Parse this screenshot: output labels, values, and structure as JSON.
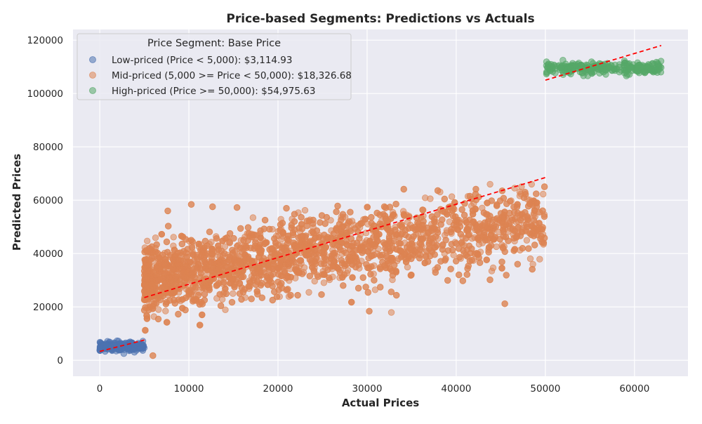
{
  "chart_data": {
    "type": "scatter",
    "title": "Price-based Segments: Predictions vs Actuals",
    "xlabel": "Actual Prices",
    "ylabel": "Predicted Prices",
    "xlim": [
      -3000,
      66000
    ],
    "ylim": [
      -6000,
      124000
    ],
    "x_ticks": [
      0,
      10000,
      20000,
      30000,
      40000,
      50000,
      60000
    ],
    "y_ticks": [
      0,
      20000,
      40000,
      60000,
      80000,
      100000,
      120000
    ],
    "grid": true,
    "legend": {
      "title": "Price Segment: Base Price",
      "placement": "top-left"
    },
    "series": [
      {
        "name": "Low-priced (Price < 5,000): $3,114.93",
        "color": "#4c72b0",
        "point_cloud": {
          "x_range": [
            0,
            5000
          ],
          "y_range": [
            2500,
            7800
          ],
          "count": 220
        },
        "trend": {
          "x": [
            0,
            5000
          ],
          "y": [
            3300,
            7600
          ]
        }
      },
      {
        "name": "Mid-priced (5,000 >= Price < 50,000): $18,326.68",
        "color": "#dd8452",
        "point_cloud": {
          "x_range": [
            5000,
            50000
          ],
          "y_range": [
            400,
            66000
          ],
          "count": 3200
        },
        "trend": {
          "x": [
            5000,
            50000
          ],
          "y": [
            23500,
            68500
          ]
        }
      },
      {
        "name": "High-priced (Price >= 50,000): $54,975.63",
        "color": "#55a868",
        "point_cloud": {
          "x_range": [
            50000,
            63000
          ],
          "y_range": [
            106000,
            112500
          ],
          "count": 260
        },
        "trend": {
          "x": [
            50000,
            63000
          ],
          "y": [
            105000,
            118000
          ]
        }
      }
    ],
    "trend_color": "#ff0000"
  }
}
